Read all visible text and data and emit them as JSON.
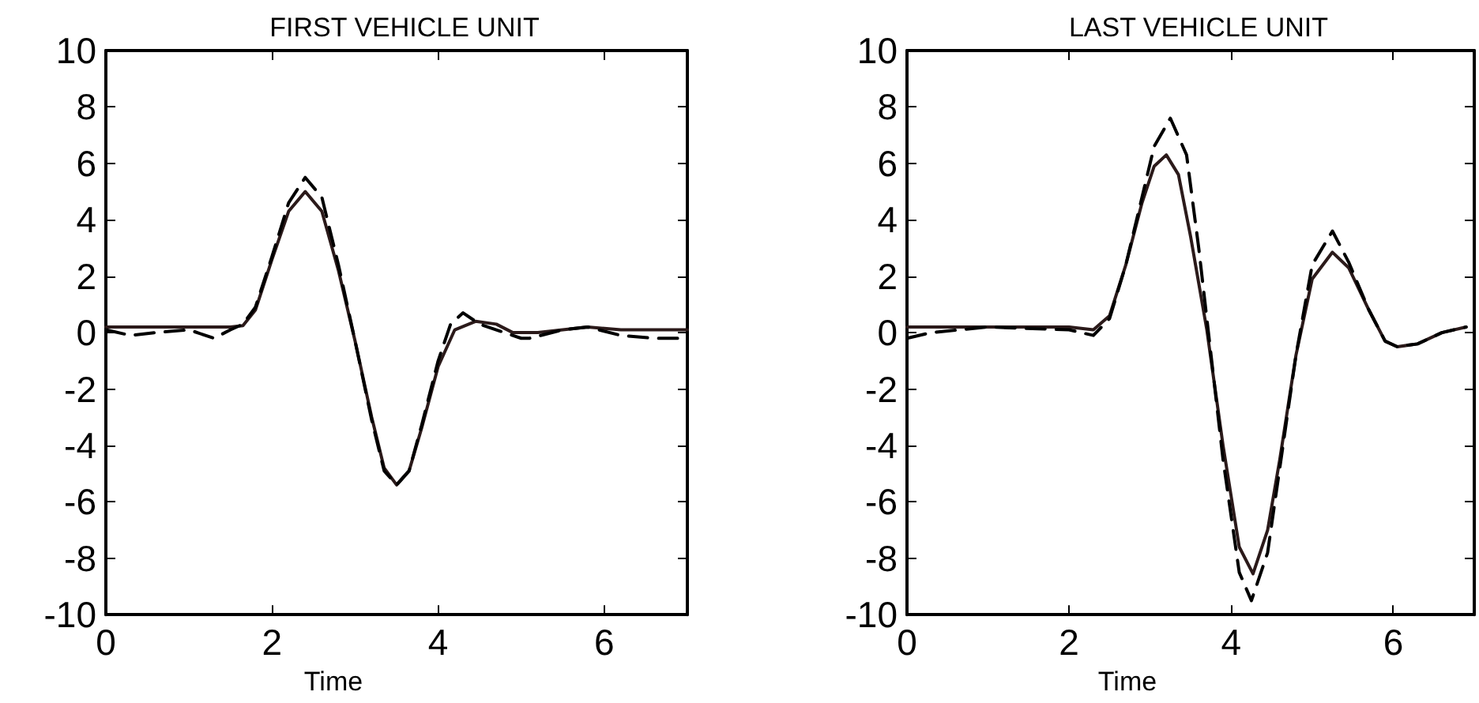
{
  "chart_data": [
    {
      "type": "line",
      "title": "FIRST VEHICLE UNIT",
      "xlabel": "Time",
      "xlim": [
        0,
        7
      ],
      "xticks": [
        0,
        2,
        4,
        6
      ],
      "ylim": [
        -10,
        10
      ],
      "yticks": [
        -10,
        -8,
        -6,
        -4,
        -2,
        0,
        2,
        4,
        6,
        8,
        10
      ],
      "grid": false,
      "marker": "none",
      "series": [
        {
          "color": "#2b1a1a",
          "line_style": "solid",
          "x": [
            0,
            0.5,
            1,
            1.5,
            1.65,
            1.8,
            2.0,
            2.2,
            2.4,
            2.6,
            2.8,
            3.0,
            3.2,
            3.35,
            3.5,
            3.65,
            3.8,
            4.0,
            4.2,
            4.45,
            4.7,
            4.9,
            5.2,
            5.5,
            5.8,
            6.2,
            6.6,
            7
          ],
          "values": [
            0.2,
            0.2,
            0.2,
            0.2,
            0.25,
            0.8,
            2.6,
            4.3,
            5.0,
            4.3,
            2.2,
            -0.3,
            -3.0,
            -4.8,
            -5.4,
            -4.9,
            -3.4,
            -1.2,
            0.1,
            0.4,
            0.3,
            0.0,
            0.0,
            0.1,
            0.2,
            0.1,
            0.1,
            0.1
          ]
        },
        {
          "color": "#000000",
          "line_style": "dashed",
          "x": [
            0,
            0.3,
            0.6,
            1,
            1.3,
            1.5,
            1.65,
            1.8,
            2.0,
            2.2,
            2.4,
            2.6,
            2.8,
            3.0,
            3.2,
            3.35,
            3.5,
            3.65,
            3.8,
            4.0,
            4.15,
            4.3,
            4.5,
            4.7,
            5.0,
            5.1,
            5.5,
            5.8,
            6.2,
            6.6,
            7
          ],
          "values": [
            0.1,
            -0.1,
            0,
            0.1,
            -0.2,
            0.1,
            0.3,
            0.9,
            2.7,
            4.6,
            5.5,
            4.8,
            2.4,
            -0.3,
            -3.1,
            -4.9,
            -5.4,
            -4.9,
            -3.3,
            -1.0,
            0.3,
            0.7,
            0.3,
            0.1,
            -0.2,
            -0.2,
            0.1,
            0.2,
            -0.1,
            -0.2,
            -0.2
          ]
        }
      ]
    },
    {
      "type": "line",
      "title": "LAST VEHICLE UNIT",
      "xlabel": "Time",
      "xlim": [
        0,
        7
      ],
      "xticks": [
        0,
        2,
        4,
        6
      ],
      "ylim": [
        -10,
        10
      ],
      "yticks": [
        -10,
        -8,
        -6,
        -4,
        -2,
        0,
        2,
        4,
        6,
        8,
        10
      ],
      "grid": false,
      "marker": "none",
      "series": [
        {
          "color": "#2b1a1a",
          "line_style": "solid",
          "x": [
            0,
            1,
            2,
            2.3,
            2.5,
            2.7,
            2.9,
            3.05,
            3.2,
            3.35,
            3.5,
            3.7,
            3.9,
            4.1,
            4.27,
            4.45,
            4.6,
            4.8,
            5.0,
            5.25,
            5.45,
            5.7,
            5.9,
            6.05,
            6.3,
            6.6,
            6.9
          ],
          "values": [
            0.2,
            0.2,
            0.2,
            0.1,
            0.6,
            2.4,
            4.6,
            5.9,
            6.3,
            5.6,
            3.4,
            0.1,
            -4.0,
            -7.6,
            -8.55,
            -7.0,
            -4.5,
            -0.8,
            1.9,
            2.85,
            2.3,
            0.8,
            -0.3,
            -0.5,
            -0.4,
            0.0,
            0.2
          ]
        },
        {
          "color": "#000000",
          "line_style": "dashed",
          "x": [
            0,
            0.3,
            1,
            2,
            2.3,
            2.5,
            2.7,
            2.9,
            3.05,
            3.25,
            3.45,
            3.6,
            3.7,
            3.9,
            4.1,
            4.25,
            4.45,
            4.6,
            4.8,
            5.0,
            5.25,
            5.45,
            5.7,
            5.9,
            6.05,
            6.3,
            6.6,
            6.9
          ],
          "values": [
            -0.2,
            0.0,
            0.2,
            0.1,
            -0.1,
            0.5,
            2.4,
            4.8,
            6.6,
            7.6,
            6.3,
            3.0,
            0.5,
            -4.5,
            -8.5,
            -9.5,
            -7.8,
            -4.8,
            -0.8,
            2.4,
            3.6,
            2.5,
            0.8,
            -0.3,
            -0.5,
            -0.4,
            0.0,
            0.2
          ]
        }
      ]
    }
  ]
}
